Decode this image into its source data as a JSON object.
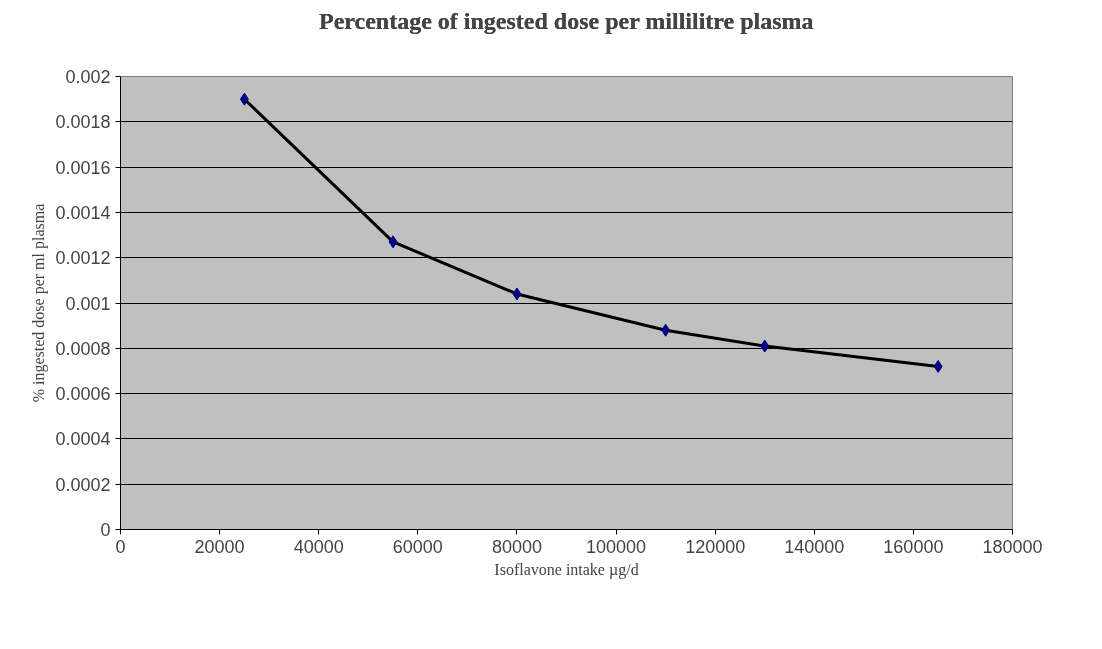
{
  "chart_data": {
    "type": "line",
    "title": "Percentage of ingested dose per millilitre plasma",
    "xlabel": "Isoflavone intake µg/d",
    "ylabel": "% ingested dose per ml plasma",
    "x": [
      25000,
      55000,
      80000,
      110000,
      130000,
      165000
    ],
    "series": [
      {
        "color": "#000000",
        "marker": "none",
        "values": [
          0.0019,
          0.00127,
          0.00104,
          0.00088,
          0.00081,
          0.00072
        ]
      },
      {
        "type": "scatter",
        "color": "#000080",
        "marker": "diamond",
        "values": [
          0.0019,
          0.00127,
          0.00104,
          0.00088,
          0.00081,
          0.00072
        ]
      }
    ],
    "xlim": [
      0,
      180000
    ],
    "xticks": [
      0,
      20000,
      40000,
      60000,
      80000,
      100000,
      120000,
      140000,
      160000,
      180000
    ],
    "ylim": [
      0,
      0.002
    ],
    "yticks": [
      0,
      0.0002,
      0.0004,
      0.0006,
      0.0008,
      0.001,
      0.0012,
      0.0014,
      0.0016,
      0.0018,
      0.002
    ],
    "grid": "y"
  }
}
